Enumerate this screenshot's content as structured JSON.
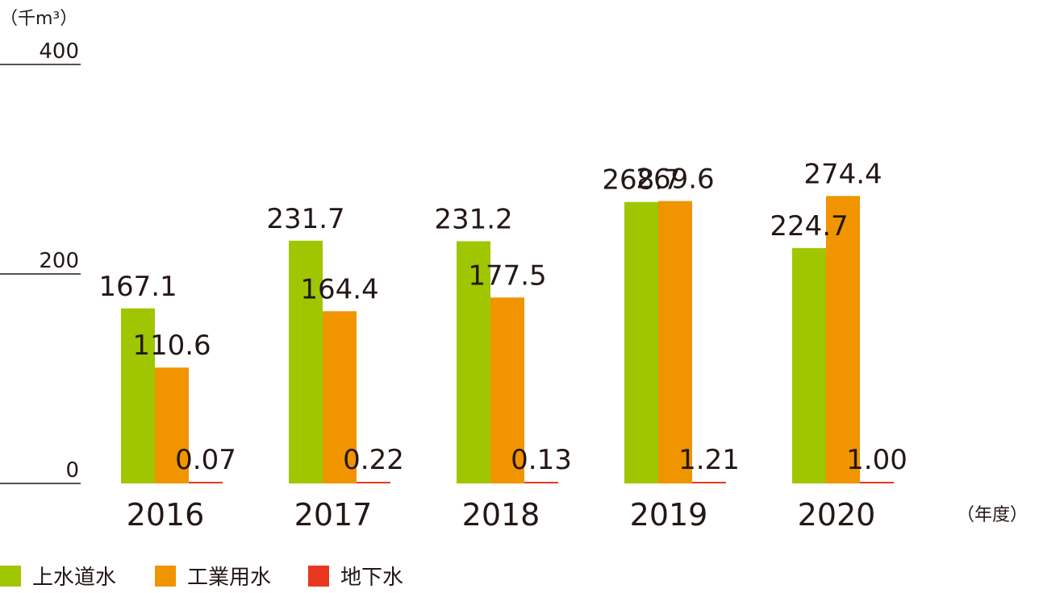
{
  "chart_data": {
    "type": "bar",
    "categories": [
      "2016",
      "2017",
      "2018",
      "2019",
      "2020"
    ],
    "series": [
      {
        "name": "上水道水",
        "color": "#9fc600",
        "values": [
          167.1,
          231.7,
          231.2,
          268.7,
          224.7
        ],
        "labels": [
          "167.1",
          "231.7",
          "231.2",
          "268.7",
          "224.7"
        ]
      },
      {
        "name": "工業用水",
        "color": "#f09400",
        "values": [
          110.6,
          164.4,
          177.5,
          269.6,
          274.4
        ],
        "labels": [
          "110.6",
          "164.4",
          "177.5",
          "269.6",
          "274.4"
        ]
      },
      {
        "name": "地下水",
        "color": "#e83820",
        "values": [
          0.07,
          0.22,
          0.13,
          1.21,
          1.0
        ],
        "labels": [
          "0.07",
          "0.22",
          "0.13",
          "1.21",
          "1.00"
        ]
      }
    ],
    "yticks": [
      "0",
      "200",
      "400"
    ],
    "ylim": [
      0,
      400
    ],
    "y_unit": "（千m³）",
    "x_unit": "（年度）",
    "legend_position": "bottom-left",
    "grid": false,
    "title": "",
    "xlabel": "",
    "ylabel": ""
  }
}
